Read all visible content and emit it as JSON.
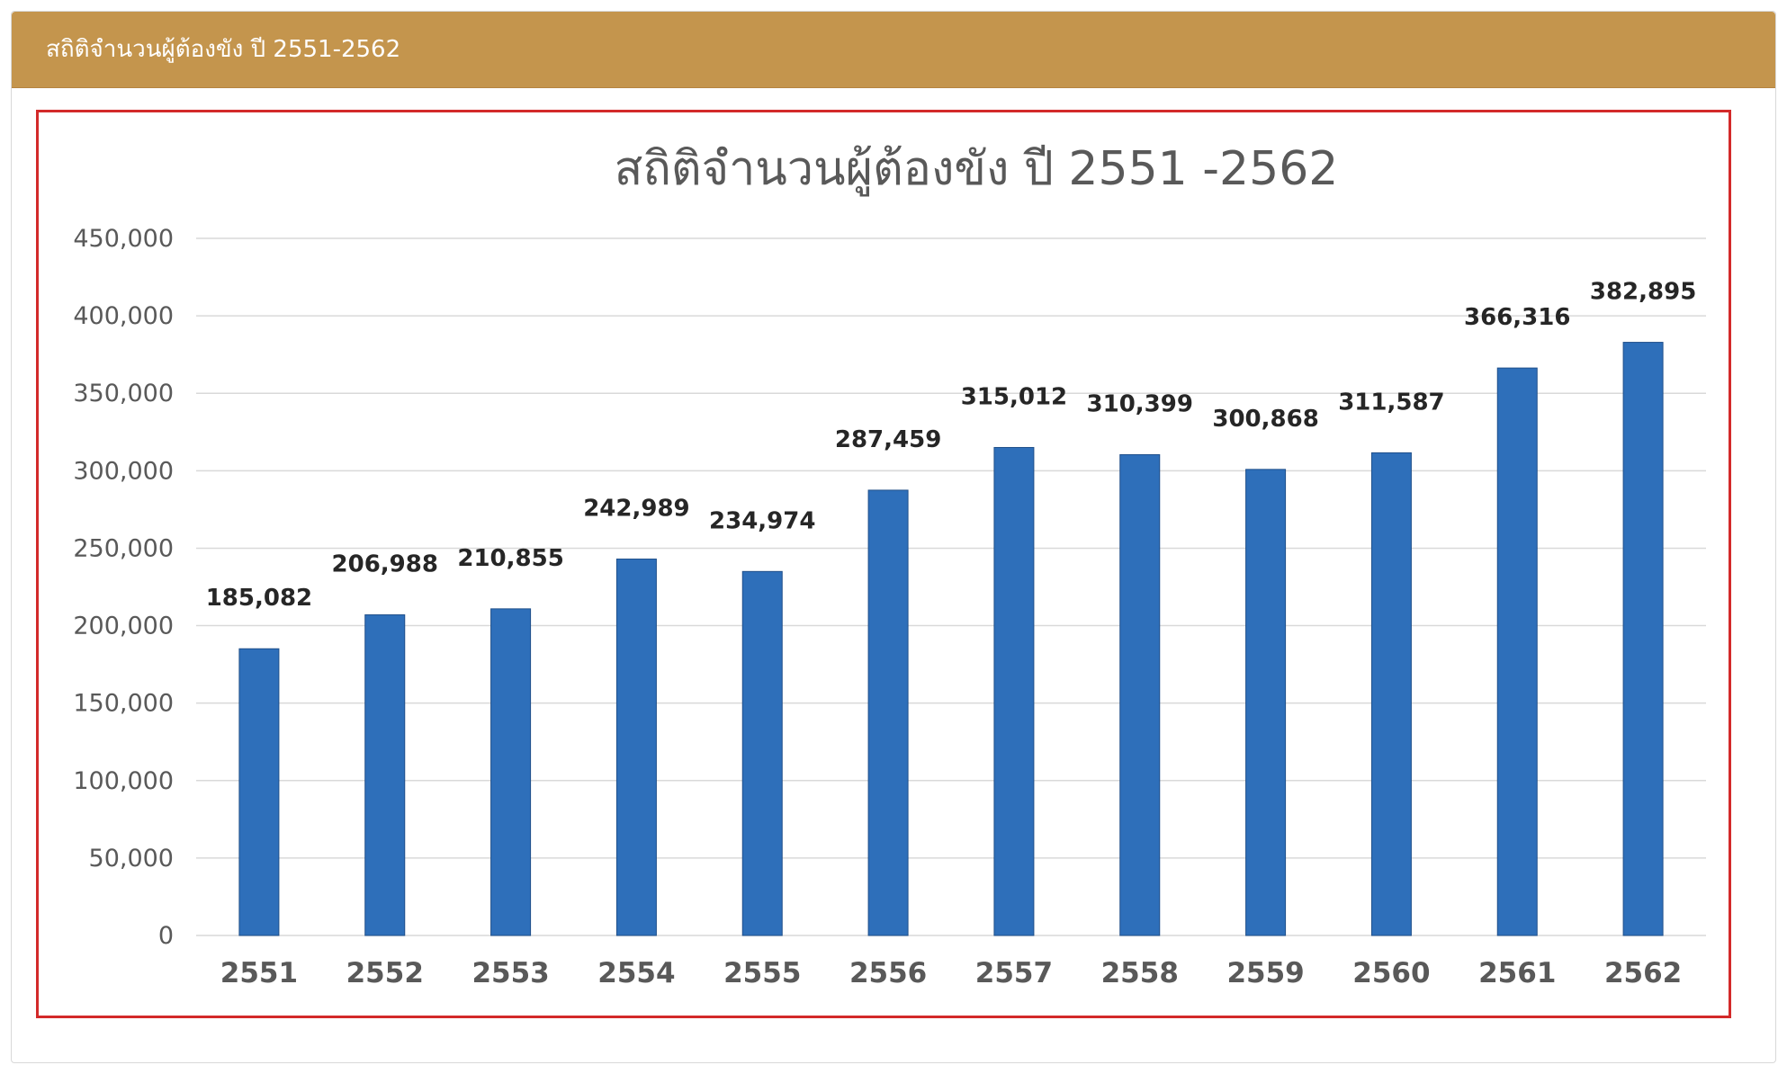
{
  "panel": {
    "title": "สถิติจำนวนผู้ต้องขัง ปี 2551-2562"
  },
  "colors": {
    "header": "#c4954d",
    "frame": "#d32a2a",
    "bar": "#2e6fba",
    "grid": "#d9d9d9"
  },
  "chart_data": {
    "type": "bar",
    "title": "สถิติจำนวนผู้ต้องขัง ปี 2551 -2562",
    "xlabel": "",
    "ylabel": "",
    "categories": [
      "2551",
      "2552",
      "2553",
      "2554",
      "2555",
      "2556",
      "2557",
      "2558",
      "2559",
      "2560",
      "2561",
      "2562"
    ],
    "values": [
      185082,
      206988,
      210855,
      242989,
      234974,
      287459,
      315012,
      310399,
      300868,
      311587,
      366316,
      382895
    ],
    "value_labels": [
      "185,082",
      "206,988",
      "210,855",
      "242,989",
      "234,974",
      "287,459",
      "315,012",
      "310,399",
      "300,868",
      "311,587",
      "366,316",
      "382,895"
    ],
    "ylim": [
      0,
      450000
    ],
    "yticks": [
      0,
      50000,
      100000,
      150000,
      200000,
      250000,
      300000,
      350000,
      400000,
      450000
    ],
    "ytick_labels": [
      "0",
      "50,000",
      "100,000",
      "150,000",
      "200,000",
      "250,000",
      "300,000",
      "350,000",
      "400,000",
      "450,000"
    ],
    "grid": true,
    "legend": "none"
  }
}
